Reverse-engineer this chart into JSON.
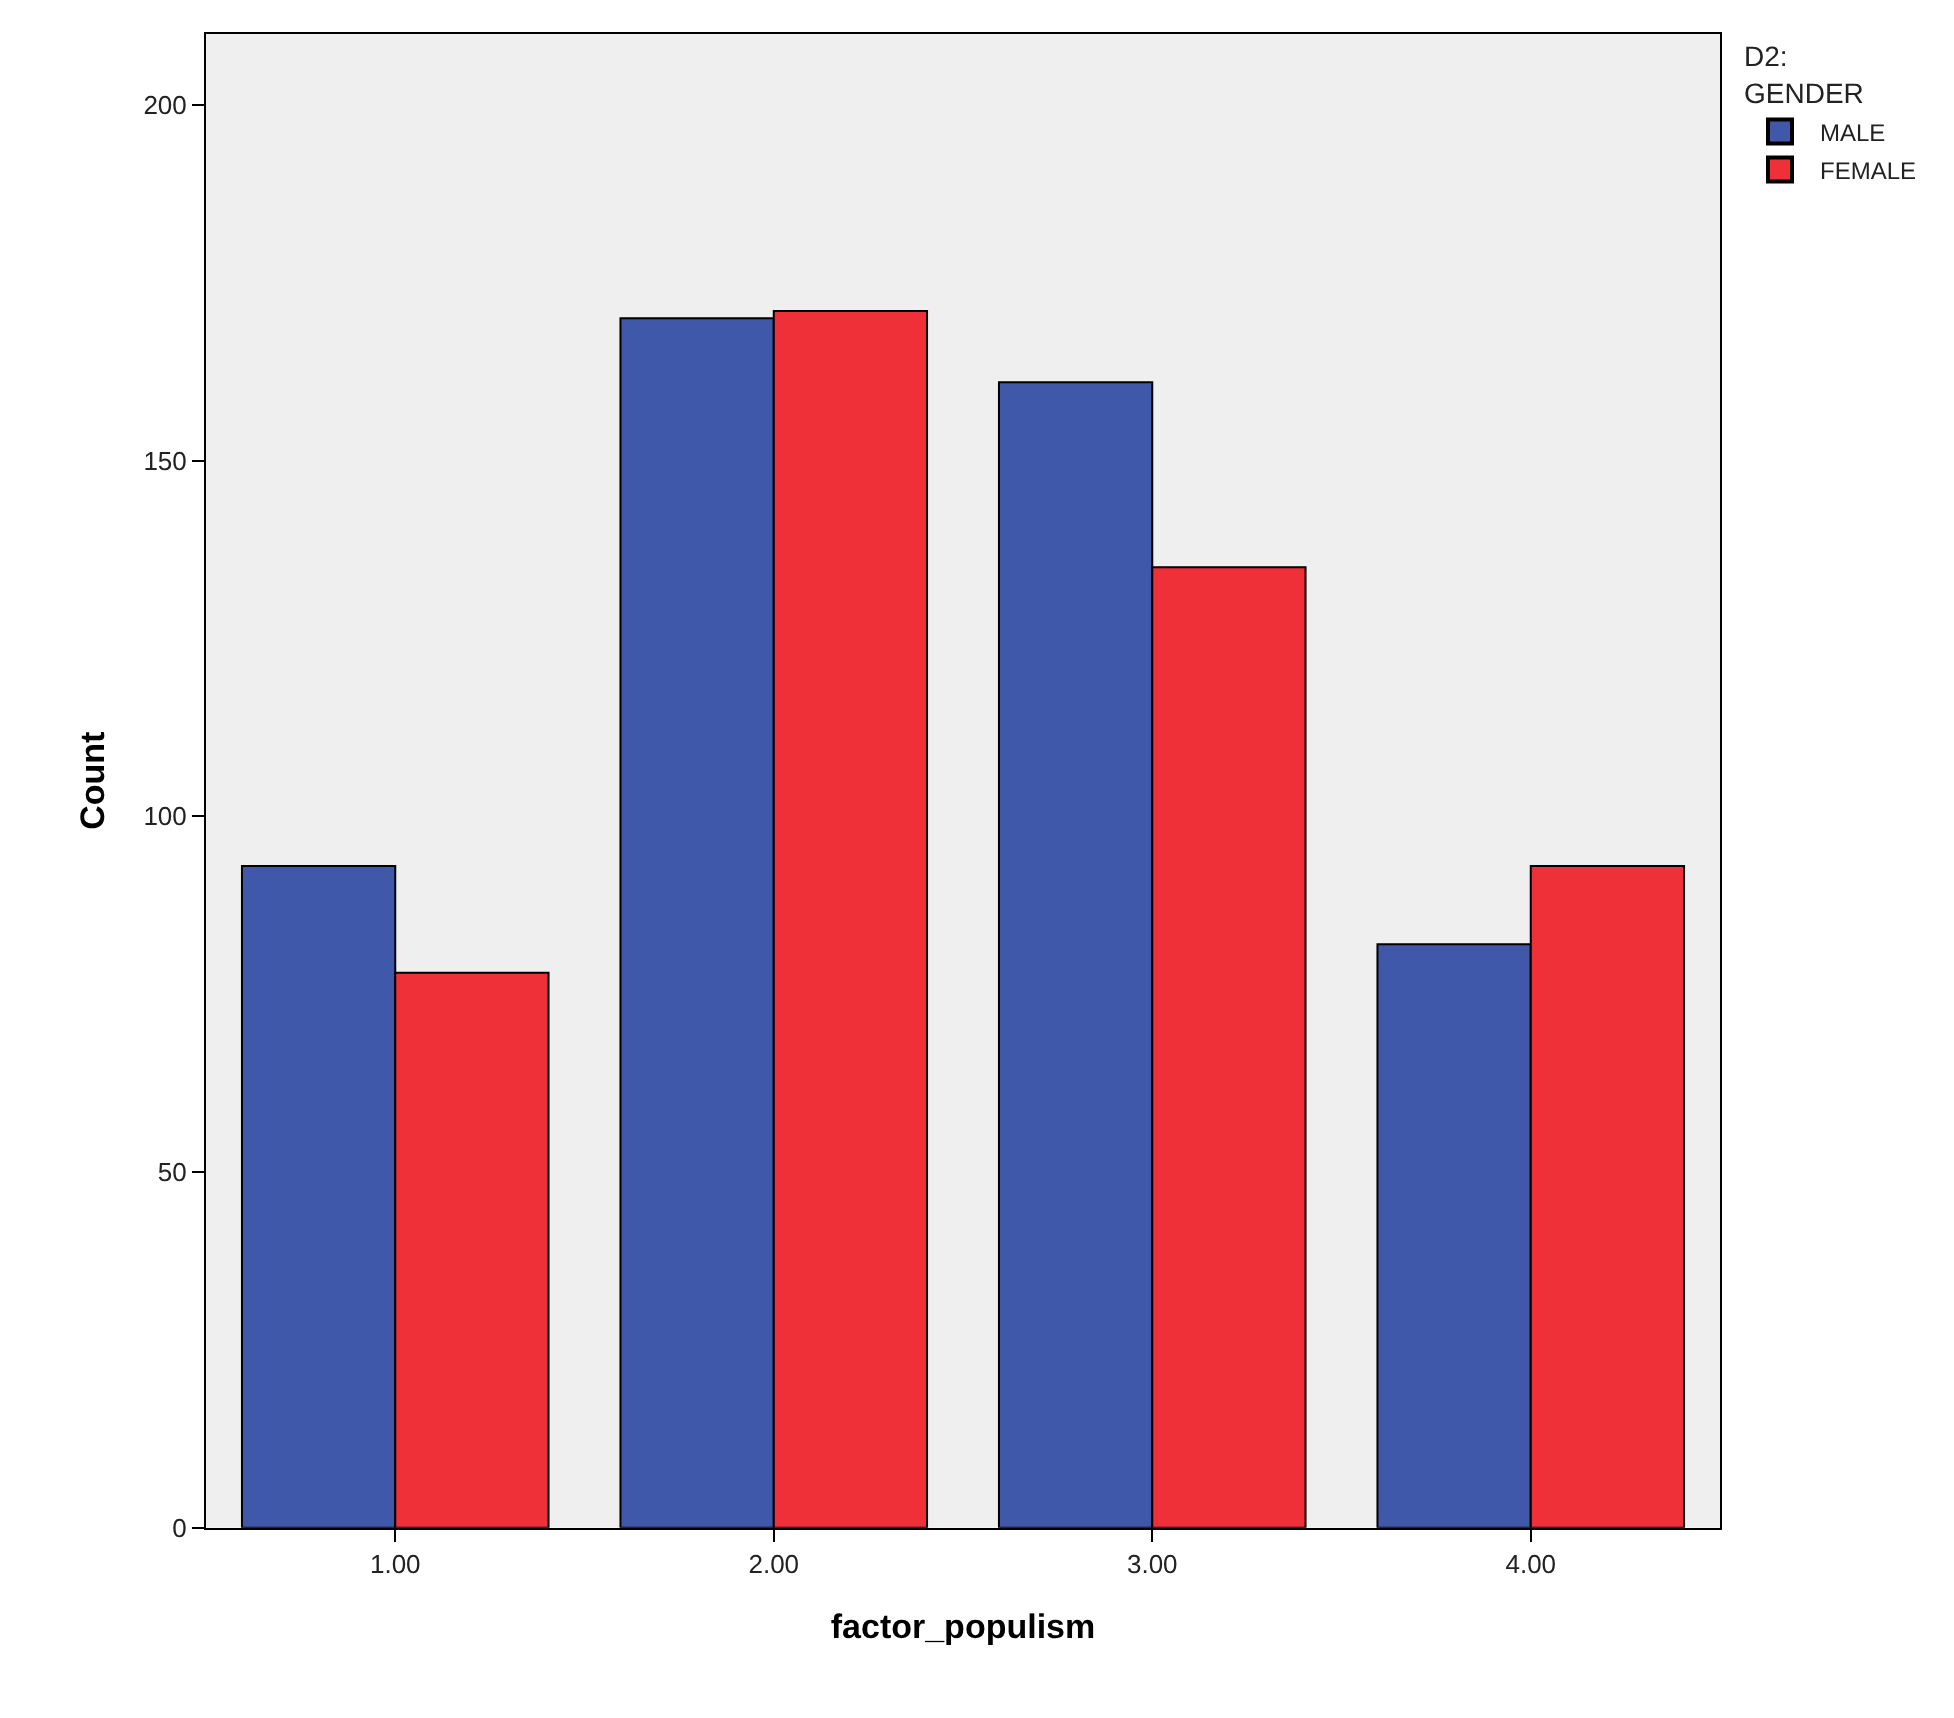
{
  "chart_data": [
    {
      "type": "bar",
      "xlabel": "factor_populism",
      "ylabel": "Count",
      "legend_title": "D2:\nGENDER",
      "legend": "top right",
      "grid": false,
      "categories": [
        "1.00",
        "2.00",
        "3.00",
        "4.00"
      ],
      "ylim": [
        0,
        210
      ],
      "yticks": [
        0,
        50,
        100,
        150,
        200
      ],
      "series": [
        {
          "name": "MALE",
          "color": "#3f58a9",
          "values": [
            93,
            170,
            161,
            82
          ]
        },
        {
          "name": "FEMALE",
          "color": "#ef3039",
          "values": [
            78,
            171,
            135,
            93
          ]
        }
      ]
    }
  ]
}
